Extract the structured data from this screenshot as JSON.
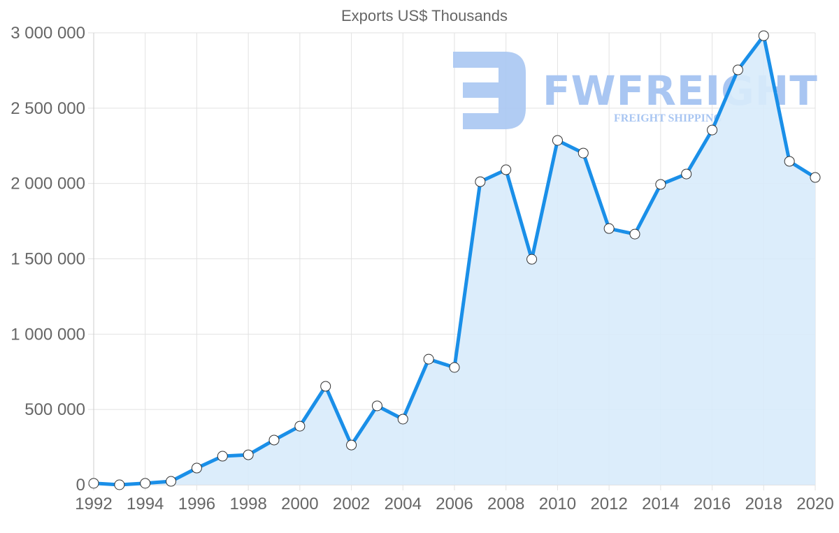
{
  "chart_data": {
    "type": "area",
    "title": "Exports US$ Thousands",
    "xlabel": "",
    "ylabel": "",
    "x": [
      1992,
      1993,
      1994,
      1995,
      1996,
      1997,
      1998,
      1999,
      2000,
      2001,
      2002,
      2003,
      2004,
      2005,
      2006,
      2007,
      2008,
      2009,
      2010,
      2011,
      2012,
      2013,
      2014,
      2015,
      2016,
      2017,
      2018,
      2019,
      2020
    ],
    "series": [
      {
        "name": "Exports US$ Thousands",
        "values": [
          10000,
          0,
          10000,
          23000,
          111000,
          190000,
          199000,
          297000,
          389000,
          654000,
          264000,
          524000,
          436000,
          834000,
          779000,
          2012000,
          2091000,
          1497000,
          2286000,
          2202000,
          1701000,
          1664000,
          1994000,
          2063000,
          2355000,
          2754000,
          2981000,
          2147000,
          2040000
        ]
      }
    ],
    "x_tick_labels": [
      "1992",
      "1994",
      "1996",
      "1998",
      "2000",
      "2002",
      "2004",
      "2006",
      "2008",
      "2010",
      "2012",
      "2014",
      "2016",
      "2018",
      "2020"
    ],
    "y_tick_labels": [
      "0",
      "500 000",
      "1 000 000",
      "1 500 000",
      "2 000 000",
      "2 500 000",
      "3 000 000"
    ],
    "y_ticks": [
      0,
      500000,
      1000000,
      1500000,
      2000000,
      2500000,
      3000000
    ],
    "xlim": [
      1992,
      2020
    ],
    "ylim": [
      0,
      3000000
    ],
    "grid": true,
    "legend": "none",
    "colors": {
      "line": "#1a8fe8",
      "fill": "#d8ebfb",
      "point_fill": "#ffffff",
      "point_stroke": "#333333",
      "grid": "#e2e2e2",
      "text": "#666666"
    }
  },
  "watermark": {
    "brand": "FWFREIGHT",
    "tagline": "FREIGHT SHIPPING",
    "color": "#a9c6f2"
  }
}
